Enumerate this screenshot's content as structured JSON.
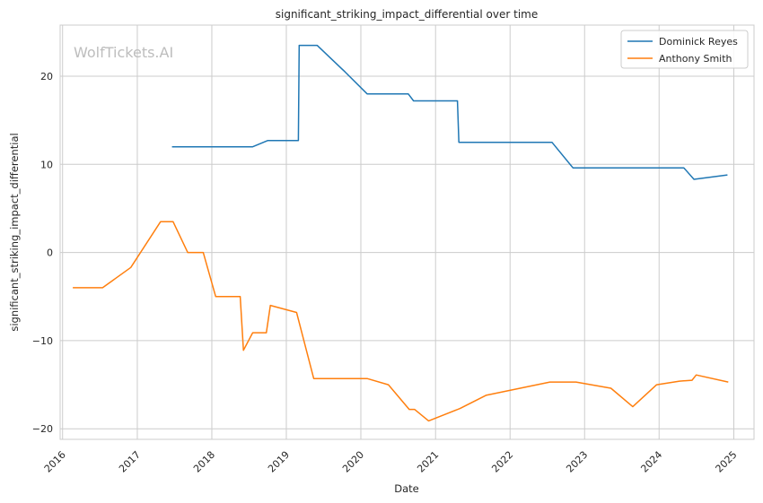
{
  "chart_data": {
    "type": "line",
    "title": "significant_striking_impact_differential over time",
    "xlabel": "Date",
    "ylabel": "significant_striking_impact_differential",
    "watermark": "WolfTickets.AI",
    "x_ticks": [
      "2016",
      "2017",
      "2018",
      "2019",
      "2020",
      "2021",
      "2022",
      "2023",
      "2024",
      "2025"
    ],
    "y_ticks": [
      -20,
      -10,
      0,
      10,
      20
    ],
    "xlim": [
      "2015-12-20",
      "2025-04-10"
    ],
    "ylim": [
      -21.2,
      25.8
    ],
    "grid": true,
    "legend_position": "top-right",
    "series": [
      {
        "name": "Dominick Reyes",
        "color": "#1f77b4",
        "points": [
          [
            "2017-06-20",
            12.0
          ],
          [
            "2018-07-20",
            12.0
          ],
          [
            "2018-10-01",
            12.7
          ],
          [
            "2019-03-01",
            12.7
          ],
          [
            "2019-03-05",
            23.5
          ],
          [
            "2019-06-01",
            23.5
          ],
          [
            "2019-10-15",
            20.5
          ],
          [
            "2020-02-01",
            18.0
          ],
          [
            "2020-08-20",
            18.0
          ],
          [
            "2020-09-15",
            17.2
          ],
          [
            "2021-04-18",
            17.2
          ],
          [
            "2021-04-25",
            12.5
          ],
          [
            "2022-07-25",
            12.5
          ],
          [
            "2022-11-05",
            9.6
          ],
          [
            "2024-05-01",
            9.6
          ],
          [
            "2024-06-20",
            8.3
          ],
          [
            "2024-12-01",
            8.8
          ]
        ]
      },
      {
        "name": "Anthony Smith",
        "color": "#ff7f0e",
        "points": [
          [
            "2016-02-20",
            -4.0
          ],
          [
            "2016-07-15",
            -4.0
          ],
          [
            "2016-11-30",
            -1.7
          ],
          [
            "2017-04-25",
            3.5
          ],
          [
            "2017-06-25",
            3.5
          ],
          [
            "2017-09-05",
            0.0
          ],
          [
            "2017-11-20",
            0.0
          ],
          [
            "2018-01-20",
            -5.0
          ],
          [
            "2018-05-20",
            -5.0
          ],
          [
            "2018-06-05",
            -11.1
          ],
          [
            "2018-07-20",
            -9.1
          ],
          [
            "2018-09-25",
            -9.1
          ],
          [
            "2018-10-15",
            -6.0
          ],
          [
            "2019-02-20",
            -6.8
          ],
          [
            "2019-05-15",
            -14.3
          ],
          [
            "2020-02-01",
            -14.3
          ],
          [
            "2020-05-15",
            -15.0
          ],
          [
            "2020-08-25",
            -17.8
          ],
          [
            "2020-09-20",
            -17.8
          ],
          [
            "2020-11-28",
            -19.1
          ],
          [
            "2021-05-01",
            -17.7
          ],
          [
            "2021-09-05",
            -16.2
          ],
          [
            "2022-07-15",
            -14.7
          ],
          [
            "2022-11-20",
            -14.7
          ],
          [
            "2023-05-10",
            -15.4
          ],
          [
            "2023-08-25",
            -17.5
          ],
          [
            "2023-12-20",
            -15.0
          ],
          [
            "2024-04-10",
            -14.6
          ],
          [
            "2024-06-10",
            -14.5
          ],
          [
            "2024-07-01",
            -13.9
          ],
          [
            "2024-12-05",
            -14.7
          ]
        ]
      }
    ]
  }
}
